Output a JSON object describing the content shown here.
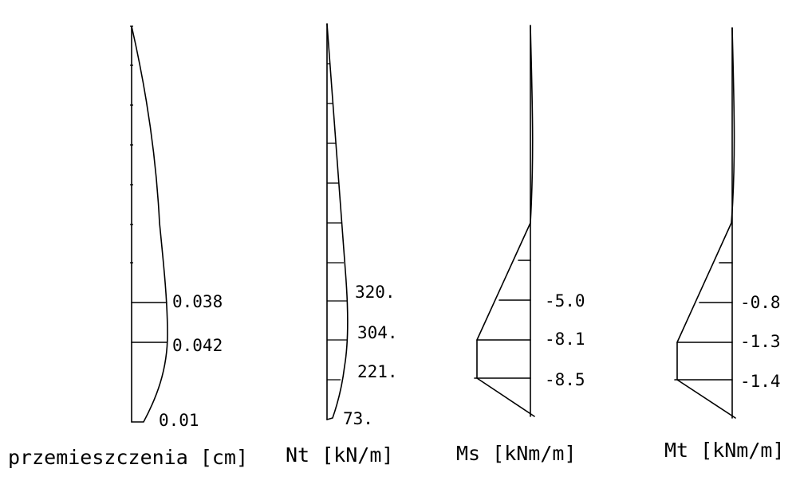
{
  "diagrams": [
    {
      "id": "displacement",
      "caption": "przemieszczenia [cm]",
      "labels": [
        "0.038",
        "0.042",
        "0.01"
      ]
    },
    {
      "id": "nt",
      "caption": "Nt [kN/m]",
      "labels": [
        "320.",
        "304.",
        "221.",
        "73."
      ]
    },
    {
      "id": "ms",
      "caption": "Ms [kNm/m]",
      "labels": [
        "-5.0",
        "-8.1",
        "-8.5"
      ]
    },
    {
      "id": "mt",
      "caption": "Mt [kNm/m]",
      "labels": [
        "-0.8",
        "-1.3",
        "-1.4"
      ]
    }
  ]
}
